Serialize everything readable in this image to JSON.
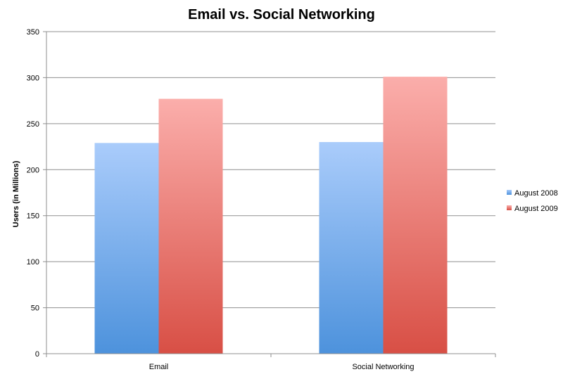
{
  "chart_data": {
    "type": "bar",
    "title": "Email vs. Social Networking",
    "xlabel": "",
    "ylabel": "Users (in Millions)",
    "categories": [
      "Email",
      "Social Networking"
    ],
    "series": [
      {
        "name": "August 2008",
        "values": [
          229,
          230
        ],
        "color_top": "#aaccfb",
        "color_bottom": "#4d92dc"
      },
      {
        "name": "August 2009",
        "values": [
          277,
          301
        ],
        "color_top": "#fbaeab",
        "color_bottom": "#d84f45"
      }
    ],
    "ylim": [
      0,
      350
    ],
    "yticks": [
      0,
      50,
      100,
      150,
      200,
      250,
      300,
      350
    ],
    "grid": true,
    "legend_position": "right"
  }
}
